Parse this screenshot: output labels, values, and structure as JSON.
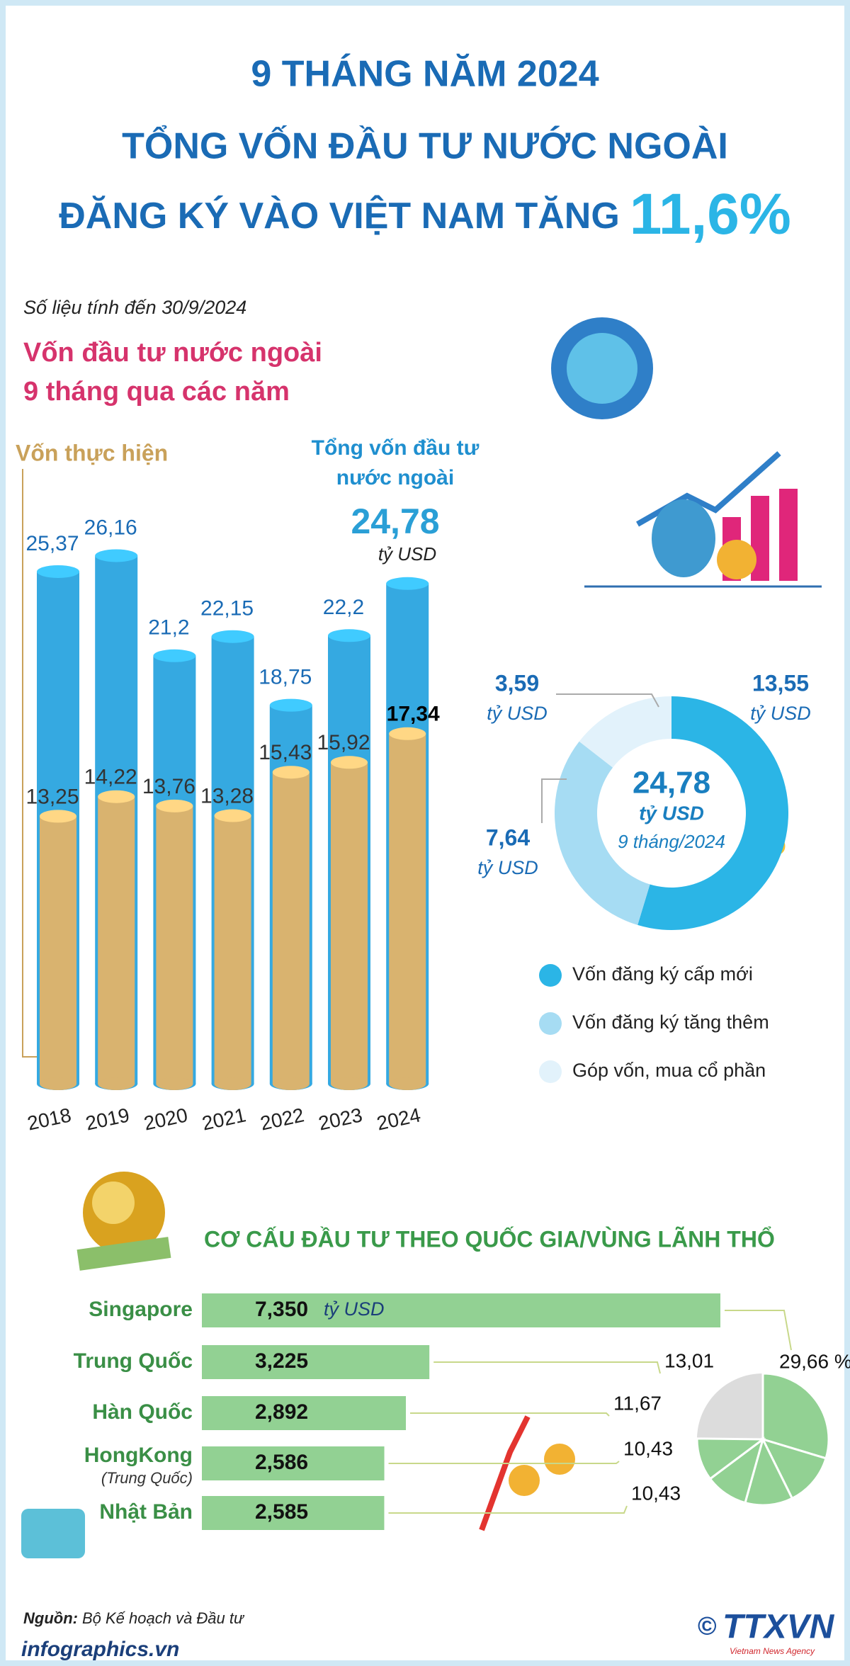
{
  "header": {
    "title_lines": [
      "9 THÁNG NĂM 2024",
      "TỔNG VỐN ĐẦU TƯ NƯỚC NGOÀI",
      "ĐĂNG KÝ VÀO VIỆT NAM TĂNG"
    ],
    "highlight": "11,6%"
  },
  "note": "Số liệu tính đến 30/9/2024",
  "chart_data": [
    {
      "type": "cylinder",
      "title_lines": [
        "Vốn đầu tư nước ngoài",
        "9 tháng qua các năm"
      ],
      "categories": [
        "2018",
        "2019",
        "2020",
        "2021",
        "2022",
        "2023",
        "2024"
      ],
      "unit": "tỷ USD",
      "series": [
        {
          "name": "Tổng vốn đầu tư nước ngoài",
          "color": "#35a9e1",
          "values": [
            25.37,
            26.16,
            21.2,
            22.15,
            18.75,
            22.2,
            24.78
          ],
          "value_labels": [
            "25,37",
            "26,16",
            "21,2",
            "22,15",
            "18,75",
            "22,2",
            "24,78"
          ]
        },
        {
          "name": "Vốn thực hiện",
          "color": "#d9b36f",
          "values": [
            13.25,
            14.22,
            13.76,
            13.28,
            15.43,
            15.92,
            17.34
          ],
          "value_labels": [
            "13,25",
            "14,22",
            "13,76",
            "13,28",
            "15,43",
            "15,92",
            "17,34"
          ]
        }
      ]
    },
    {
      "type": "donut",
      "categories": [
        "Vốn đăng ký cấp mới",
        "Vốn đăng ký tăng thêm",
        "Góp vốn, mua cổ phần"
      ],
      "values": [
        13.55,
        7.64,
        3.59
      ],
      "value_labels": [
        "13,55",
        "7,64",
        "3,59"
      ],
      "colors": [
        "#2bb5e6",
        "#a6dcf3",
        "#e2f2fb"
      ],
      "unit": "tỷ USD",
      "center_lines": [
        "24,78",
        "9 tháng/2024"
      ]
    },
    {
      "type": "hbar",
      "title": "CƠ CẤU ĐẦU TƯ THEO QUỐC GIA/VÙNG LÃNH THỔ",
      "categories": [
        "Singapore",
        "Trung Quốc",
        "Hàn Quốc",
        "HongKong",
        "Nhật Bản"
      ],
      "category_notes": [
        null,
        null,
        null,
        "(Trung Quốc)",
        null
      ],
      "values": [
        7.35,
        3.225,
        2.892,
        2.586,
        2.585
      ],
      "value_labels": [
        "7,350",
        "3,225",
        "2,892",
        "2,586",
        "2,585"
      ],
      "unit": "tỷ USD",
      "color": "#92d193"
    },
    {
      "type": "pie",
      "values": [
        29.66,
        13.01,
        11.67,
        10.43,
        10.43
      ],
      "value_labels": [
        "29,66 %",
        "13,01",
        "11,67",
        "10,43",
        "10,43"
      ],
      "color": "#92d193"
    }
  ],
  "footer": {
    "source_label": "Nguồn:",
    "source": "Bộ Kế hoạch và Đầu tư",
    "site": "infographics.vn",
    "copyright": "©",
    "logo": "TTXVN",
    "agency": "Vietnam News Agency"
  }
}
